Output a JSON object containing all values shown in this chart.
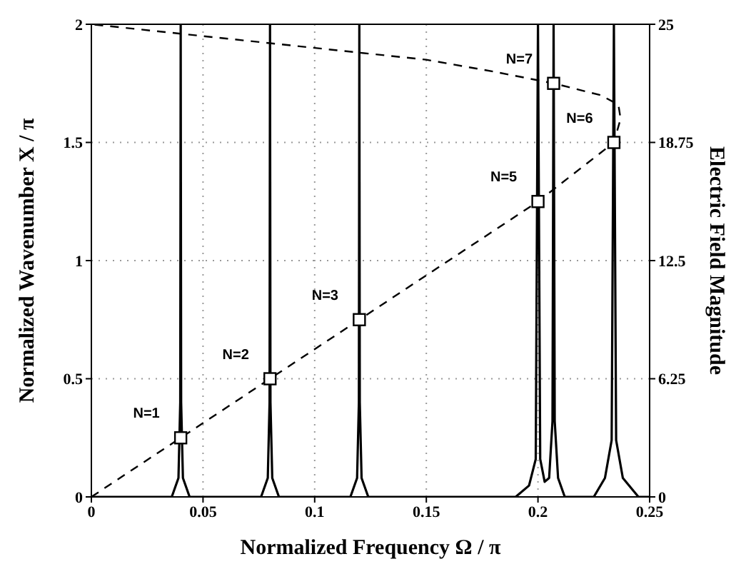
{
  "chart_data": {
    "type": "line",
    "xlabel": "Normalized Frequency Ω / π",
    "ylabel": "Normalized Wavenumber X / π",
    "y2label": "Electric Field Magnitude",
    "xlim": [
      0,
      0.25
    ],
    "xticks": [
      0,
      0.05,
      0.1,
      0.15,
      0.2,
      0.25
    ],
    "ylim": [
      0,
      2
    ],
    "yticks": [
      0,
      0.5,
      1,
      1.5,
      2
    ],
    "y2lim": [
      0,
      25
    ],
    "y2ticks": [
      0,
      6.25,
      12.5,
      18.75,
      25
    ],
    "grid": true,
    "legend": false,
    "series": [
      {
        "type": "line",
        "color": "#000000",
        "line_style": "dashed",
        "marker": "none",
        "x": [
          0,
          0.04,
          0.08,
          0.12,
          0.16,
          0.2,
          0.234,
          0.237,
          0.236,
          0.228,
          0.207,
          0.18,
          0.15,
          0.12,
          0.08,
          0.04,
          0
        ],
        "values": [
          0,
          0.25,
          0.5,
          0.75,
          1.0,
          1.25,
          1.5,
          1.6,
          1.66,
          1.7,
          1.75,
          1.8,
          1.85,
          1.88,
          1.92,
          1.96,
          2
        ]
      },
      {
        "type": "line",
        "axis": "y2",
        "color": "#000000",
        "line_style": "solid",
        "marker": "none",
        "x": [
          0,
          0.036,
          0.039,
          0.0398,
          0.04,
          0.0402,
          0.041,
          0.044,
          0.076,
          0.079,
          0.0798,
          0.08,
          0.0802,
          0.081,
          0.084,
          0.116,
          0.119,
          0.1198,
          0.12,
          0.1202,
          0.121,
          0.124,
          0.19,
          0.196,
          0.199,
          0.2,
          0.201,
          0.203,
          0.205,
          0.2065,
          0.207,
          0.2075,
          0.209,
          0.212,
          0.225,
          0.23,
          0.233,
          0.234,
          0.235,
          0.238,
          0.245,
          0.25
        ],
        "values": [
          0,
          0,
          1,
          5,
          25,
          5,
          1,
          0,
          0,
          1,
          5,
          25,
          5,
          1,
          0,
          0,
          1,
          5,
          25,
          5,
          1,
          0,
          0,
          0.6,
          2,
          25,
          2,
          0.8,
          1,
          4,
          25,
          4,
          1,
          0,
          0,
          1,
          3,
          25,
          3,
          1,
          0,
          0
        ]
      },
      {
        "type": "scatter",
        "color": "#000000",
        "marker": "square",
        "x": [
          0.04,
          0.08,
          0.12,
          0.2,
          0.234,
          0.207
        ],
        "values": [
          0.25,
          0.5,
          0.75,
          1.25,
          1.5,
          1.75
        ]
      }
    ],
    "annotations": [
      {
        "text": "N=1",
        "x": 0.04,
        "y": 0.25
      },
      {
        "text": "N=2",
        "x": 0.08,
        "y": 0.5
      },
      {
        "text": "N=3",
        "x": 0.12,
        "y": 0.75
      },
      {
        "text": "N=5",
        "x": 0.2,
        "y": 1.25
      },
      {
        "text": "N=6",
        "x": 0.234,
        "y": 1.5
      },
      {
        "text": "N=7",
        "x": 0.207,
        "y": 1.75
      }
    ]
  }
}
